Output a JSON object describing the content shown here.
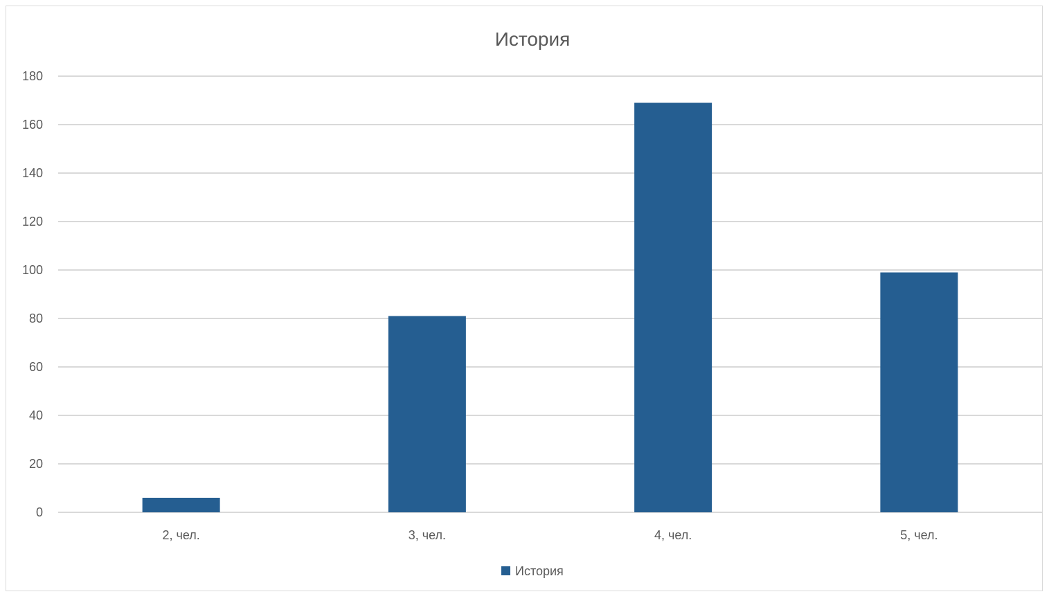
{
  "chart_data": {
    "type": "bar",
    "title": "История",
    "categories": [
      "2, чел.",
      "3, чел.",
      "4, чел.",
      "5, чел."
    ],
    "series": [
      {
        "name": "История",
        "values": [
          6,
          81,
          169,
          99
        ],
        "color": "#255E91"
      }
    ],
    "xlabel": "",
    "ylabel": "",
    "ylim": [
      0,
      180
    ],
    "yticks": [
      "0",
      "20",
      "40",
      "60",
      "80",
      "100",
      "120",
      "140",
      "160",
      "180"
    ],
    "grid": true,
    "legend_position": "bottom",
    "colors": {
      "bar": "#255E91",
      "grid": "#d9d9d9",
      "text": "#595959"
    }
  }
}
